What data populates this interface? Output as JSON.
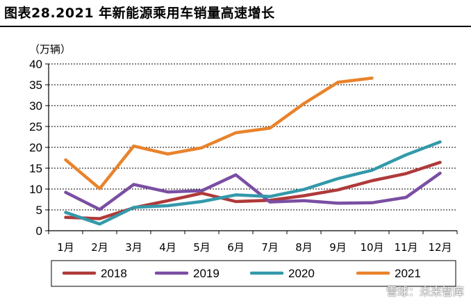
{
  "title": "图表28.2021 年新能源乘用车销量高速增长",
  "watermark": "雪球：未来智库",
  "chart_data": {
    "type": "line",
    "unit": "（万辆）",
    "categories": [
      "1月",
      "2月",
      "3月",
      "4月",
      "5月",
      "6月",
      "7月",
      "8月",
      "9月",
      "10月",
      "11月",
      "12月"
    ],
    "yticks": [
      "0",
      "5",
      "10",
      "15",
      "20",
      "25",
      "30",
      "35",
      "40"
    ],
    "ylim": [
      0,
      40
    ],
    "grid": true,
    "legend_position": "bottom",
    "series": [
      {
        "name": "2018",
        "color": "#b0393a",
        "values": [
          3.2,
          2.9,
          5.5,
          7.2,
          9.0,
          7.0,
          7.3,
          8.4,
          9.8,
          12.0,
          13.7,
          16.4
        ]
      },
      {
        "name": "2019",
        "color": "#7a4fa3",
        "values": [
          9.2,
          5.1,
          11.1,
          9.3,
          9.6,
          13.4,
          6.9,
          7.2,
          6.6,
          6.7,
          8.0,
          13.8
        ]
      },
      {
        "name": "2020",
        "color": "#3399aa",
        "values": [
          4.4,
          1.6,
          5.6,
          6.0,
          7.0,
          8.6,
          8.2,
          9.9,
          12.5,
          14.5,
          18.2,
          21.3
        ]
      },
      {
        "name": "2021",
        "color": "#e8832c",
        "values": [
          17.0,
          10.1,
          20.3,
          18.4,
          19.9,
          23.5,
          24.6,
          30.5,
          35.6,
          36.6,
          null,
          null
        ]
      }
    ]
  }
}
